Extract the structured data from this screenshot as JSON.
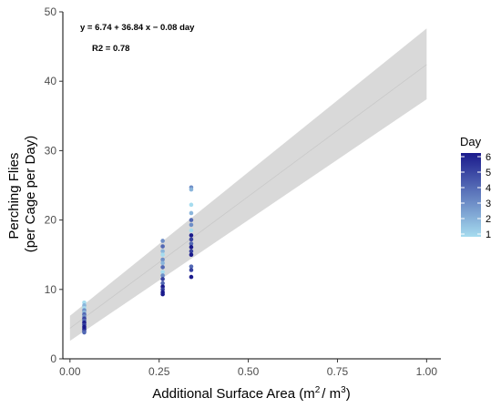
{
  "chart_data": {
    "type": "scatter",
    "title": "",
    "xlabel_main": "Additional Surface Area (m",
    "xlabel_sup1": "2",
    "xlabel_mid": "/ m",
    "xlabel_sup2": "3",
    "xlabel_end": ")",
    "ylabel_line1": "Perching Flies",
    "ylabel_line2": "(per Cage per Day)",
    "xlim": [
      -0.02,
      1.04
    ],
    "ylim": [
      0,
      50
    ],
    "xticks": [
      0.0,
      0.25,
      0.5,
      0.75,
      1.0
    ],
    "xtick_labels": [
      "0.00",
      "0.25",
      "0.50",
      "0.75",
      "1.00"
    ],
    "yticks": [
      0,
      10,
      20,
      30,
      40,
      50
    ],
    "ytick_labels": [
      "0",
      "10",
      "20",
      "30",
      "40",
      "50"
    ],
    "annotations": {
      "equation": "y = 6.74 + 36.84 x − 0.08 day",
      "r2": "R2 = 0.78"
    },
    "regression": {
      "line": [
        [
          0.0,
          4.4
        ],
        [
          1.0,
          42.4
        ]
      ],
      "ci_upper": [
        [
          0.0,
          6.2
        ],
        [
          1.0,
          47.6
        ]
      ],
      "ci_lower": [
        [
          0.0,
          2.6
        ],
        [
          1.0,
          37.4
        ]
      ],
      "fill_color": "#d9d9d9"
    },
    "legend": {
      "title": "Day",
      "placement": "right",
      "labels": [
        "6",
        "5",
        "4",
        "3",
        "2",
        "1"
      ],
      "range": [
        1,
        6
      ],
      "color_low": "#a6dcef",
      "color_high": "#1a1a8c"
    },
    "series": [
      {
        "x": 0.04,
        "points": [
          {
            "y": 8.1,
            "day": 1
          },
          {
            "y": 7.7,
            "day": 2
          },
          {
            "y": 7.3,
            "day": 1
          },
          {
            "y": 7.0,
            "day": 3
          },
          {
            "y": 6.7,
            "day": 2
          },
          {
            "y": 6.4,
            "day": 4
          },
          {
            "y": 6.1,
            "day": 3
          },
          {
            "y": 5.8,
            "day": 5
          },
          {
            "y": 5.5,
            "day": 4
          },
          {
            "y": 5.2,
            "day": 6
          },
          {
            "y": 4.9,
            "day": 5
          },
          {
            "y": 4.6,
            "day": 6
          },
          {
            "y": 4.3,
            "day": 6
          },
          {
            "y": 4.0,
            "day": 5
          },
          {
            "y": 3.8,
            "day": 4
          }
        ]
      },
      {
        "x": 0.26,
        "points": [
          {
            "y": 17.0,
            "day": 3
          },
          {
            "y": 16.2,
            "day": 4
          },
          {
            "y": 15.5,
            "day": 2
          },
          {
            "y": 15.0,
            "day": 1
          },
          {
            "y": 14.3,
            "day": 3
          },
          {
            "y": 13.8,
            "day": 2
          },
          {
            "y": 13.2,
            "day": 4
          },
          {
            "y": 12.5,
            "day": 1
          },
          {
            "y": 12.0,
            "day": 3
          },
          {
            "y": 11.5,
            "day": 5
          },
          {
            "y": 10.9,
            "day": 4
          },
          {
            "y": 10.4,
            "day": 6
          },
          {
            "y": 10.0,
            "day": 5
          },
          {
            "y": 9.6,
            "day": 6
          },
          {
            "y": 9.3,
            "day": 6
          }
        ]
      },
      {
        "x": 0.34,
        "points": [
          {
            "y": 24.7,
            "day": 3
          },
          {
            "y": 24.4,
            "day": 2
          },
          {
            "y": 22.2,
            "day": 1
          },
          {
            "y": 21.0,
            "day": 2
          },
          {
            "y": 20.0,
            "day": 4
          },
          {
            "y": 19.3,
            "day": 3
          },
          {
            "y": 18.5,
            "day": 1
          },
          {
            "y": 17.8,
            "day": 6
          },
          {
            "y": 17.2,
            "day": 5
          },
          {
            "y": 16.6,
            "day": 4
          },
          {
            "y": 16.1,
            "day": 6
          },
          {
            "y": 15.5,
            "day": 5
          },
          {
            "y": 15.0,
            "day": 6
          },
          {
            "y": 13.3,
            "day": 4
          },
          {
            "y": 12.8,
            "day": 5
          },
          {
            "y": 11.8,
            "day": 6
          }
        ]
      }
    ]
  }
}
